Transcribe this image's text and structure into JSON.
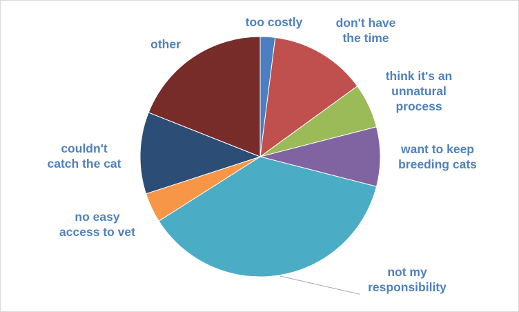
{
  "chart_data": {
    "type": "pie",
    "title": "",
    "start_angle_deg": 0,
    "direction": "clockwise",
    "slices": [
      {
        "label": [
          "too costly"
        ],
        "value": 2,
        "color": "#4a7fc1"
      },
      {
        "label": [
          "don't have",
          "the time"
        ],
        "value": 13,
        "color": "#c0504d"
      },
      {
        "label": [
          "think it's an",
          "unnatural",
          "process"
        ],
        "value": 6,
        "color": "#9bbb59"
      },
      {
        "label": [
          "want to keep",
          "breeding cats"
        ],
        "value": 8,
        "color": "#8064a2"
      },
      {
        "label": [
          "not my",
          "responsibility"
        ],
        "value": 37,
        "color": "#4bacc6"
      },
      {
        "label": [
          "no easy",
          "access to vet"
        ],
        "value": 4,
        "color": "#f79646"
      },
      {
        "label": [
          "couldn't",
          "catch the cat"
        ],
        "value": 11,
        "color": "#2c4d75"
      },
      {
        "label": [
          "other"
        ],
        "value": 19,
        "color": "#772c2a"
      }
    ],
    "label_color": "#4f81bd",
    "legend": "none"
  }
}
